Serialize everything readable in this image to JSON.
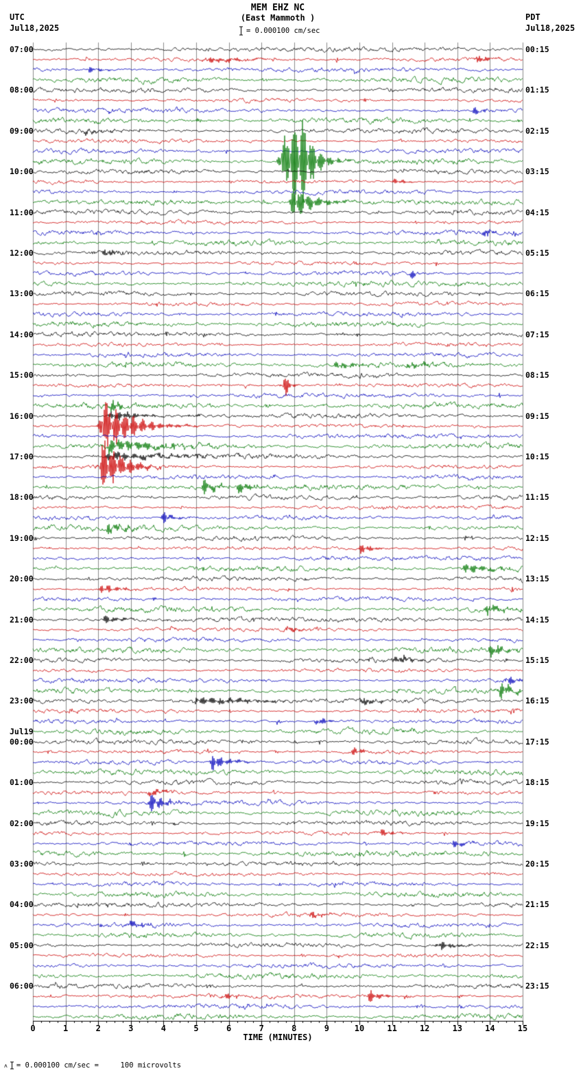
{
  "header": {
    "station_line": "MEM EHZ NC",
    "location_line": "(East Mammoth )",
    "scale_label": "= 0.000100 cm/sec",
    "left_tz": "UTC",
    "left_date": "Jul18,2025",
    "right_tz": "PDT",
    "right_date": "Jul18,2025"
  },
  "axis": {
    "label": "TIME (MINUTES)",
    "ticks": [
      "0",
      "1",
      "2",
      "3",
      "4",
      "5",
      "6",
      "7",
      "8",
      "9",
      "10",
      "11",
      "12",
      "13",
      "14",
      "15"
    ]
  },
  "footer": {
    "prefix": "ʌ",
    "note": "= 0.000100 cm/sec =     100 microvolts"
  },
  "chart_data": {
    "type": "seismogram-helicorder",
    "station": "MEM EHZ NC",
    "location": "East Mammoth",
    "minutes_per_line": 15,
    "lines_per_hour": 4,
    "rows": 96,
    "start_label_utc": "07:00 Jul18,2025",
    "end_label_utc": "06:45 Jul19",
    "trace_colors": [
      "#000000",
      "#cc0000",
      "#0000bb",
      "#007700"
    ],
    "color_noise_mult": [
      1.05,
      0.85,
      1.0,
      1.25
    ],
    "noise_amp": 1.5,
    "grid_color": "#8a8a8a",
    "axis_color": "#000000",
    "left_labels": [
      {
        "row": 0,
        "text": "07:00"
      },
      {
        "row": 4,
        "text": "08:00"
      },
      {
        "row": 8,
        "text": "09:00"
      },
      {
        "row": 12,
        "text": "10:00"
      },
      {
        "row": 16,
        "text": "11:00"
      },
      {
        "row": 20,
        "text": "12:00"
      },
      {
        "row": 24,
        "text": "13:00"
      },
      {
        "row": 28,
        "text": "14:00"
      },
      {
        "row": 32,
        "text": "15:00"
      },
      {
        "row": 36,
        "text": "16:00"
      },
      {
        "row": 40,
        "text": "17:00"
      },
      {
        "row": 44,
        "text": "18:00"
      },
      {
        "row": 48,
        "text": "19:00"
      },
      {
        "row": 52,
        "text": "20:00"
      },
      {
        "row": 56,
        "text": "21:00"
      },
      {
        "row": 60,
        "text": "22:00"
      },
      {
        "row": 64,
        "text": "23:00"
      },
      {
        "row": 67,
        "text": "Jul19"
      },
      {
        "row": 68,
        "text": "00:00"
      },
      {
        "row": 72,
        "text": "01:00"
      },
      {
        "row": 76,
        "text": "02:00"
      },
      {
        "row": 80,
        "text": "03:00"
      },
      {
        "row": 84,
        "text": "04:00"
      },
      {
        "row": 88,
        "text": "05:00"
      },
      {
        "row": 92,
        "text": "06:00"
      }
    ],
    "right_labels": [
      {
        "row": 0,
        "text": "00:15"
      },
      {
        "row": 4,
        "text": "01:15"
      },
      {
        "row": 8,
        "text": "02:15"
      },
      {
        "row": 12,
        "text": "03:15"
      },
      {
        "row": 16,
        "text": "04:15"
      },
      {
        "row": 20,
        "text": "05:15"
      },
      {
        "row": 24,
        "text": "06:15"
      },
      {
        "row": 28,
        "text": "07:15"
      },
      {
        "row": 32,
        "text": "08:15"
      },
      {
        "row": 36,
        "text": "09:15"
      },
      {
        "row": 40,
        "text": "10:15"
      },
      {
        "row": 44,
        "text": "11:15"
      },
      {
        "row": 48,
        "text": "12:15"
      },
      {
        "row": 52,
        "text": "13:15"
      },
      {
        "row": 56,
        "text": "14:15"
      },
      {
        "row": 60,
        "text": "15:15"
      },
      {
        "row": 64,
        "text": "16:15"
      },
      {
        "row": 68,
        "text": "17:15"
      },
      {
        "row": 72,
        "text": "18:15"
      },
      {
        "row": 76,
        "text": "19:15"
      },
      {
        "row": 80,
        "text": "20:15"
      },
      {
        "row": 84,
        "text": "21:15"
      },
      {
        "row": 88,
        "text": "22:15"
      },
      {
        "row": 92,
        "text": "23:15"
      }
    ],
    "events": [
      {
        "row": 1,
        "min": 5.3,
        "amp": 6,
        "decay": 1.0
      },
      {
        "row": 1,
        "min": 13.6,
        "amp": 8,
        "decay": 0.3
      },
      {
        "row": 2,
        "min": 1.7,
        "amp": 5,
        "decay": 0.4
      },
      {
        "row": 6,
        "min": 13.5,
        "amp": 7,
        "decay": 0.3
      },
      {
        "row": 8,
        "min": 1.6,
        "amp": 4,
        "decay": 0.8
      },
      {
        "row": 11,
        "min": 7.62,
        "amp": 55,
        "decay": 0.5
      },
      {
        "row": 11,
        "min": 7.95,
        "amp": 60,
        "decay": 0.35
      },
      {
        "row": 11,
        "min": 8.25,
        "amp": 45,
        "decay": 0.3
      },
      {
        "row": 13,
        "min": 11.1,
        "amp": 6,
        "decay": 0.3
      },
      {
        "row": 15,
        "min": 7.95,
        "amp": 30,
        "decay": 0.6
      },
      {
        "row": 18,
        "min": 13.75,
        "amp": 8,
        "decay": 0.2
      },
      {
        "row": 20,
        "min": 2.2,
        "amp": 8,
        "decay": 0.3
      },
      {
        "row": 22,
        "min": 11.6,
        "amp": 9,
        "decay": 0.15
      },
      {
        "row": 31,
        "min": 9.3,
        "amp": 7,
        "decay": 0.5
      },
      {
        "row": 31,
        "min": 11.5,
        "amp": 6,
        "decay": 0.5
      },
      {
        "row": 33,
        "min": 7.7,
        "amp": 22,
        "decay": 0.15
      },
      {
        "row": 35,
        "min": 2.45,
        "amp": 14,
        "decay": 0.2
      },
      {
        "row": 36,
        "min": 2.4,
        "amp": 10,
        "decay": 0.8
      },
      {
        "row": 37,
        "min": 2.12,
        "amp": 50,
        "decay": 0.8
      },
      {
        "row": 39,
        "min": 2.3,
        "amp": 12,
        "decay": 1.5
      },
      {
        "row": 40,
        "min": 2.3,
        "amp": 8,
        "decay": 2.0
      },
      {
        "row": 41,
        "min": 2.12,
        "amp": 55,
        "decay": 0.5
      },
      {
        "row": 43,
        "min": 5.25,
        "amp": 16,
        "decay": 0.3
      },
      {
        "row": 43,
        "min": 6.3,
        "amp": 10,
        "decay": 0.4
      },
      {
        "row": 46,
        "min": 4.0,
        "amp": 10,
        "decay": 0.3
      },
      {
        "row": 47,
        "min": 2.3,
        "amp": 8,
        "decay": 0.6
      },
      {
        "row": 49,
        "min": 10.05,
        "amp": 10,
        "decay": 0.3
      },
      {
        "row": 51,
        "min": 13.2,
        "amp": 8,
        "decay": 0.8
      },
      {
        "row": 53,
        "min": 2.1,
        "amp": 8,
        "decay": 0.5
      },
      {
        "row": 55,
        "min": 13.9,
        "amp": 9,
        "decay": 0.5
      },
      {
        "row": 56,
        "min": 2.2,
        "amp": 7,
        "decay": 0.5
      },
      {
        "row": 57,
        "min": 7.8,
        "amp": 7,
        "decay": 0.3
      },
      {
        "row": 59,
        "min": 14.0,
        "amp": 10,
        "decay": 0.6
      },
      {
        "row": 60,
        "min": 11.15,
        "amp": 10,
        "decay": 0.4
      },
      {
        "row": 62,
        "min": 14.5,
        "amp": 10,
        "decay": 0.4
      },
      {
        "row": 63,
        "min": 14.35,
        "amp": 14,
        "decay": 0.3
      },
      {
        "row": 64,
        "min": 5.0,
        "amp": 8,
        "decay": 1.6
      },
      {
        "row": 64,
        "min": 10.05,
        "amp": 7,
        "decay": 0.4
      },
      {
        "row": 66,
        "min": 8.7,
        "amp": 8,
        "decay": 0.3
      },
      {
        "row": 69,
        "min": 9.8,
        "amp": 7,
        "decay": 0.3
      },
      {
        "row": 70,
        "min": 5.5,
        "amp": 14,
        "decay": 0.5
      },
      {
        "row": 73,
        "min": 3.6,
        "amp": 8,
        "decay": 0.4
      },
      {
        "row": 74,
        "min": 3.6,
        "amp": 16,
        "decay": 0.4
      },
      {
        "row": 77,
        "min": 10.6,
        "amp": 7,
        "decay": 0.4
      },
      {
        "row": 78,
        "min": 12.9,
        "amp": 8,
        "decay": 0.3
      },
      {
        "row": 85,
        "min": 8.5,
        "amp": 5,
        "decay": 0.4
      },
      {
        "row": 86,
        "min": 3.0,
        "amp": 6,
        "decay": 0.5
      },
      {
        "row": 88,
        "min": 12.4,
        "amp": 8,
        "decay": 0.5
      },
      {
        "row": 93,
        "min": 5.9,
        "amp": 6,
        "decay": 0.3
      },
      {
        "row": 93,
        "min": 10.3,
        "amp": 12,
        "decay": 0.3
      }
    ]
  }
}
